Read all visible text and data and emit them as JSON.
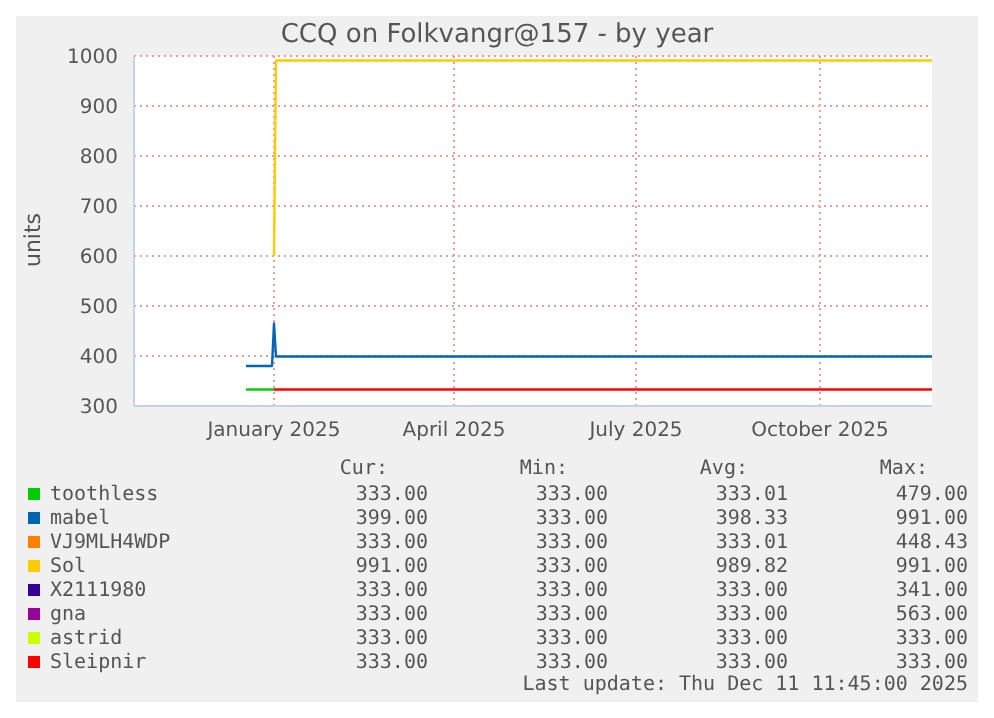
{
  "chart_data": {
    "type": "line",
    "title": "CCQ on Folkvangr@157 - by year",
    "ylabel": "units",
    "xlim": [
      "2024-11-07",
      "2025-12-11"
    ],
    "xticks": [
      {
        "value": "2025-01-16",
        "label": "January 2025"
      },
      {
        "value": "2025-04-16",
        "label": "April 2025"
      },
      {
        "value": "2025-07-16",
        "label": "July 2025"
      },
      {
        "value": "2025-10-16",
        "label": "October 2025"
      }
    ],
    "ylim": [
      300,
      1000
    ],
    "yticks": [
      300,
      400,
      500,
      600,
      700,
      800,
      900,
      1000
    ],
    "grid": true,
    "legend": "bottom",
    "series": [
      {
        "name": "toothless",
        "color": "#00cc00",
        "x": [
          "2025-01-02",
          "2025-01-16"
        ],
        "values": [
          333,
          333
        ]
      },
      {
        "name": "mabel",
        "color": "#0066b3",
        "x": [
          "2025-01-02",
          "2025-01-15",
          "2025-01-16",
          "2025-01-17",
          "2025-12-11"
        ],
        "values": [
          380,
          380,
          465,
          399,
          399
        ]
      },
      {
        "name": "VJ9MLH4WDP",
        "color": "#ff8000"
      },
      {
        "name": "Sol",
        "color": "#ffcc00",
        "x": [
          "2025-01-16",
          "2025-01-17",
          "2025-12-11"
        ],
        "values": [
          600,
          991,
          991
        ]
      },
      {
        "name": "X2111980",
        "color": "#330099"
      },
      {
        "name": "gna",
        "color": "#990099"
      },
      {
        "name": "astrid",
        "color": "#ccff00"
      },
      {
        "name": "Sleipnir",
        "color": "#ff0000",
        "x": [
          "2025-01-16",
          "2025-12-11"
        ],
        "values": [
          333,
          333
        ]
      }
    ],
    "annotations": [
      "Cur:",
      "Min:",
      "Avg:",
      "Max:",
      "333.00",
      "333.00",
      "333.01",
      "479.00",
      "399.00",
      "333.00",
      "398.33",
      "991.00",
      "333.00",
      "333.00",
      "333.01",
      "448.43",
      "991.00",
      "333.00",
      "989.82",
      "991.00",
      "333.00",
      "333.00",
      "333.00",
      "341.00",
      "333.00",
      "333.00",
      "333.00",
      "563.00",
      "333.00",
      "333.00",
      "333.00",
      "333.00",
      "333.00",
      "333.00",
      "333.00",
      "333.00",
      "Last update: Thu Dec 11 11:45:00 2025"
    ]
  }
}
